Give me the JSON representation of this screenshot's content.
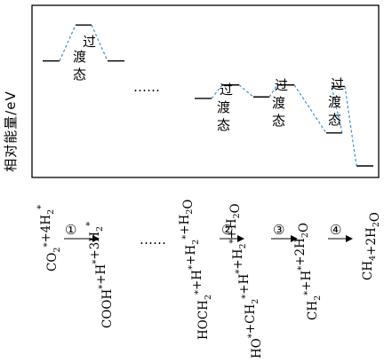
{
  "y_axis_label": "相对能量/eV",
  "ts_label": "过渡态",
  "ellipsis": "……",
  "levels": [
    {
      "id": "L0",
      "energy_rank": 0.3
    },
    {
      "id": "TS0",
      "energy_rank": 0.06,
      "transition": true
    },
    {
      "id": "L1",
      "energy_rank": 0.3
    },
    {
      "id": "L2",
      "energy_rank": 0.55
    },
    {
      "id": "TS1",
      "energy_rank": 0.46,
      "transition": true
    },
    {
      "id": "L3",
      "energy_rank": 0.54
    },
    {
      "id": "TS2",
      "energy_rank": 0.46,
      "transition": true
    },
    {
      "id": "L4",
      "energy_rank": 0.78
    },
    {
      "id": "TS3",
      "energy_rank": 0.47,
      "transition": true
    },
    {
      "id": "L5",
      "energy_rank": 1.0
    }
  ],
  "species": [
    {
      "id": "sp1",
      "lines": [
        [
          "CO",
          "2",
          "*"
        ],
        [
          "+4H",
          "2",
          "*"
        ]
      ]
    },
    {
      "id": "sp2",
      "lines": [
        [
          "COOH",
          "",
          "*"
        ],
        [
          "+H",
          "",
          "*"
        ],
        [
          "+3H",
          "2",
          "*"
        ]
      ]
    },
    {
      "id": "sp3",
      "lines": [
        [
          "HOCH",
          "2",
          "*"
        ],
        [
          "+H",
          "",
          "*"
        ],
        [
          "+H",
          "2",
          "*"
        ],
        [
          "+H",
          "2",
          ""
        ],
        [
          "O",
          "",
          ""
        ]
      ]
    },
    {
      "id": "sp4",
      "lines": [
        [
          "HO",
          "",
          "*"
        ],
        [
          "+CH",
          "2",
          "*"
        ],
        [
          "+H",
          "",
          "*"
        ],
        [
          "+H",
          "2",
          "*"
        ],
        [
          "+H",
          "2",
          ""
        ],
        [
          "O",
          "",
          ""
        ]
      ]
    },
    {
      "id": "sp5",
      "lines": [
        [
          "CH",
          "2",
          "*"
        ],
        [
          "+H",
          "",
          "*"
        ],
        [
          "+2H",
          "2",
          ""
        ],
        [
          "O",
          "",
          ""
        ]
      ]
    },
    {
      "id": "sp6",
      "lines": [
        [
          "CH",
          "4",
          ""
        ],
        [
          "+2H",
          "2",
          ""
        ],
        [
          "O",
          "",
          ""
        ]
      ]
    }
  ],
  "steps": [
    "①",
    "②",
    "③",
    "④"
  ]
}
